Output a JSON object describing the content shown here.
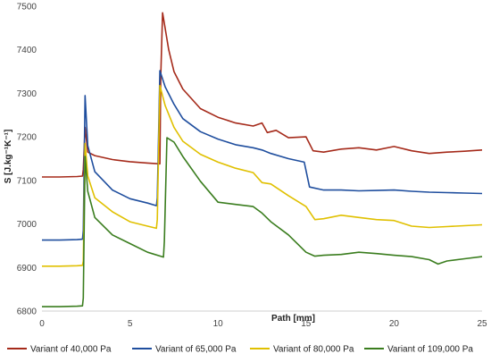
{
  "chart_data": {
    "type": "line",
    "title": "",
    "xlabel": "Path [mm]",
    "ylabel": "S [J.kg⁻¹K⁻¹]",
    "xlim": [
      0,
      25
    ],
    "ylim": [
      6800,
      7500
    ],
    "xticks": [
      0,
      5,
      10,
      15,
      20,
      25
    ],
    "yticks": [
      6800,
      6900,
      7000,
      7100,
      7200,
      7300,
      7400,
      7500
    ],
    "grid": false,
    "legend_position": "bottom",
    "series": [
      {
        "name": "Variant of 40,000 Pa",
        "color": "#a52a1a",
        "x": [
          0,
          1,
          2,
          2.3,
          2.35,
          2.45,
          2.6,
          3,
          4,
          5,
          6,
          6.7,
          6.75,
          6.85,
          7.2,
          7.5,
          8,
          9,
          10,
          11,
          12,
          12.5,
          12.8,
          13.3,
          14,
          15,
          15.4,
          16,
          17,
          18,
          19,
          20,
          21,
          22,
          23,
          24,
          25
        ],
        "y": [
          7108,
          7108,
          7109,
          7110,
          7125,
          7222,
          7165,
          7157,
          7148,
          7143,
          7140,
          7138,
          7340,
          7485,
          7400,
          7350,
          7310,
          7265,
          7245,
          7232,
          7225,
          7232,
          7210,
          7215,
          7198,
          7200,
          7168,
          7165,
          7172,
          7175,
          7170,
          7178,
          7168,
          7162,
          7165,
          7167,
          7170
        ]
      },
      {
        "name": "Variant of 65,000 Pa",
        "color": "#1f4e9e",
        "x": [
          0,
          1,
          2,
          2.3,
          2.35,
          2.45,
          2.6,
          3,
          4,
          5,
          6,
          6.5,
          6.55,
          6.7,
          7,
          7.5,
          8,
          9,
          10,
          11,
          12,
          12.5,
          13,
          14,
          14.9,
          15.2,
          16,
          17,
          18,
          19,
          20,
          21,
          22,
          23,
          24,
          25
        ],
        "y": [
          6963,
          6963,
          6964,
          6965,
          6985,
          7295,
          7180,
          7120,
          7078,
          7058,
          7048,
          7042,
          7060,
          7352,
          7315,
          7275,
          7242,
          7212,
          7195,
          7182,
          7175,
          7170,
          7162,
          7150,
          7142,
          7085,
          7078,
          7078,
          7076,
          7077,
          7078,
          7075,
          7073,
          7072,
          7071,
          7070
        ]
      },
      {
        "name": "Variant of 80,000 Pa",
        "color": "#e0c000",
        "x": [
          0,
          1,
          2,
          2.3,
          2.35,
          2.45,
          2.6,
          3,
          4,
          5,
          6,
          6.5,
          6.55,
          6.7,
          7,
          7.5,
          8,
          9,
          10,
          11,
          12,
          12.5,
          13,
          14,
          15,
          15.5,
          16,
          17,
          18,
          19,
          20,
          21,
          22,
          23,
          24,
          25
        ],
        "y": [
          6903,
          6903,
          6904,
          6905,
          6915,
          7185,
          7110,
          7060,
          7028,
          7005,
          6995,
          6990,
          7010,
          7318,
          7272,
          7222,
          7190,
          7160,
          7142,
          7128,
          7118,
          7095,
          7092,
          7065,
          7040,
          7010,
          7012,
          7020,
          7015,
          7010,
          7008,
          6995,
          6992,
          6994,
          6996,
          6998
        ]
      },
      {
        "name": "Variant of 109,000 Pa",
        "color": "#3a7d1e",
        "x": [
          0,
          1,
          2,
          2.3,
          2.35,
          2.45,
          2.6,
          3,
          4,
          5,
          6,
          6.9,
          6.95,
          7.1,
          7.5,
          8,
          9,
          10,
          11,
          12,
          12.5,
          13,
          14,
          15,
          15.5,
          16,
          17,
          18,
          19,
          20,
          21,
          22,
          22.5,
          23,
          24,
          25
        ],
        "y": [
          6810,
          6810,
          6811,
          6812,
          6830,
          7155,
          7075,
          7015,
          6975,
          6955,
          6935,
          6924,
          6960,
          7198,
          7188,
          7155,
          7098,
          7050,
          7045,
          7040,
          7025,
          7005,
          6975,
          6935,
          6926,
          6928,
          6930,
          6935,
          6932,
          6928,
          6925,
          6918,
          6908,
          6915,
          6920,
          6925
        ]
      }
    ]
  }
}
